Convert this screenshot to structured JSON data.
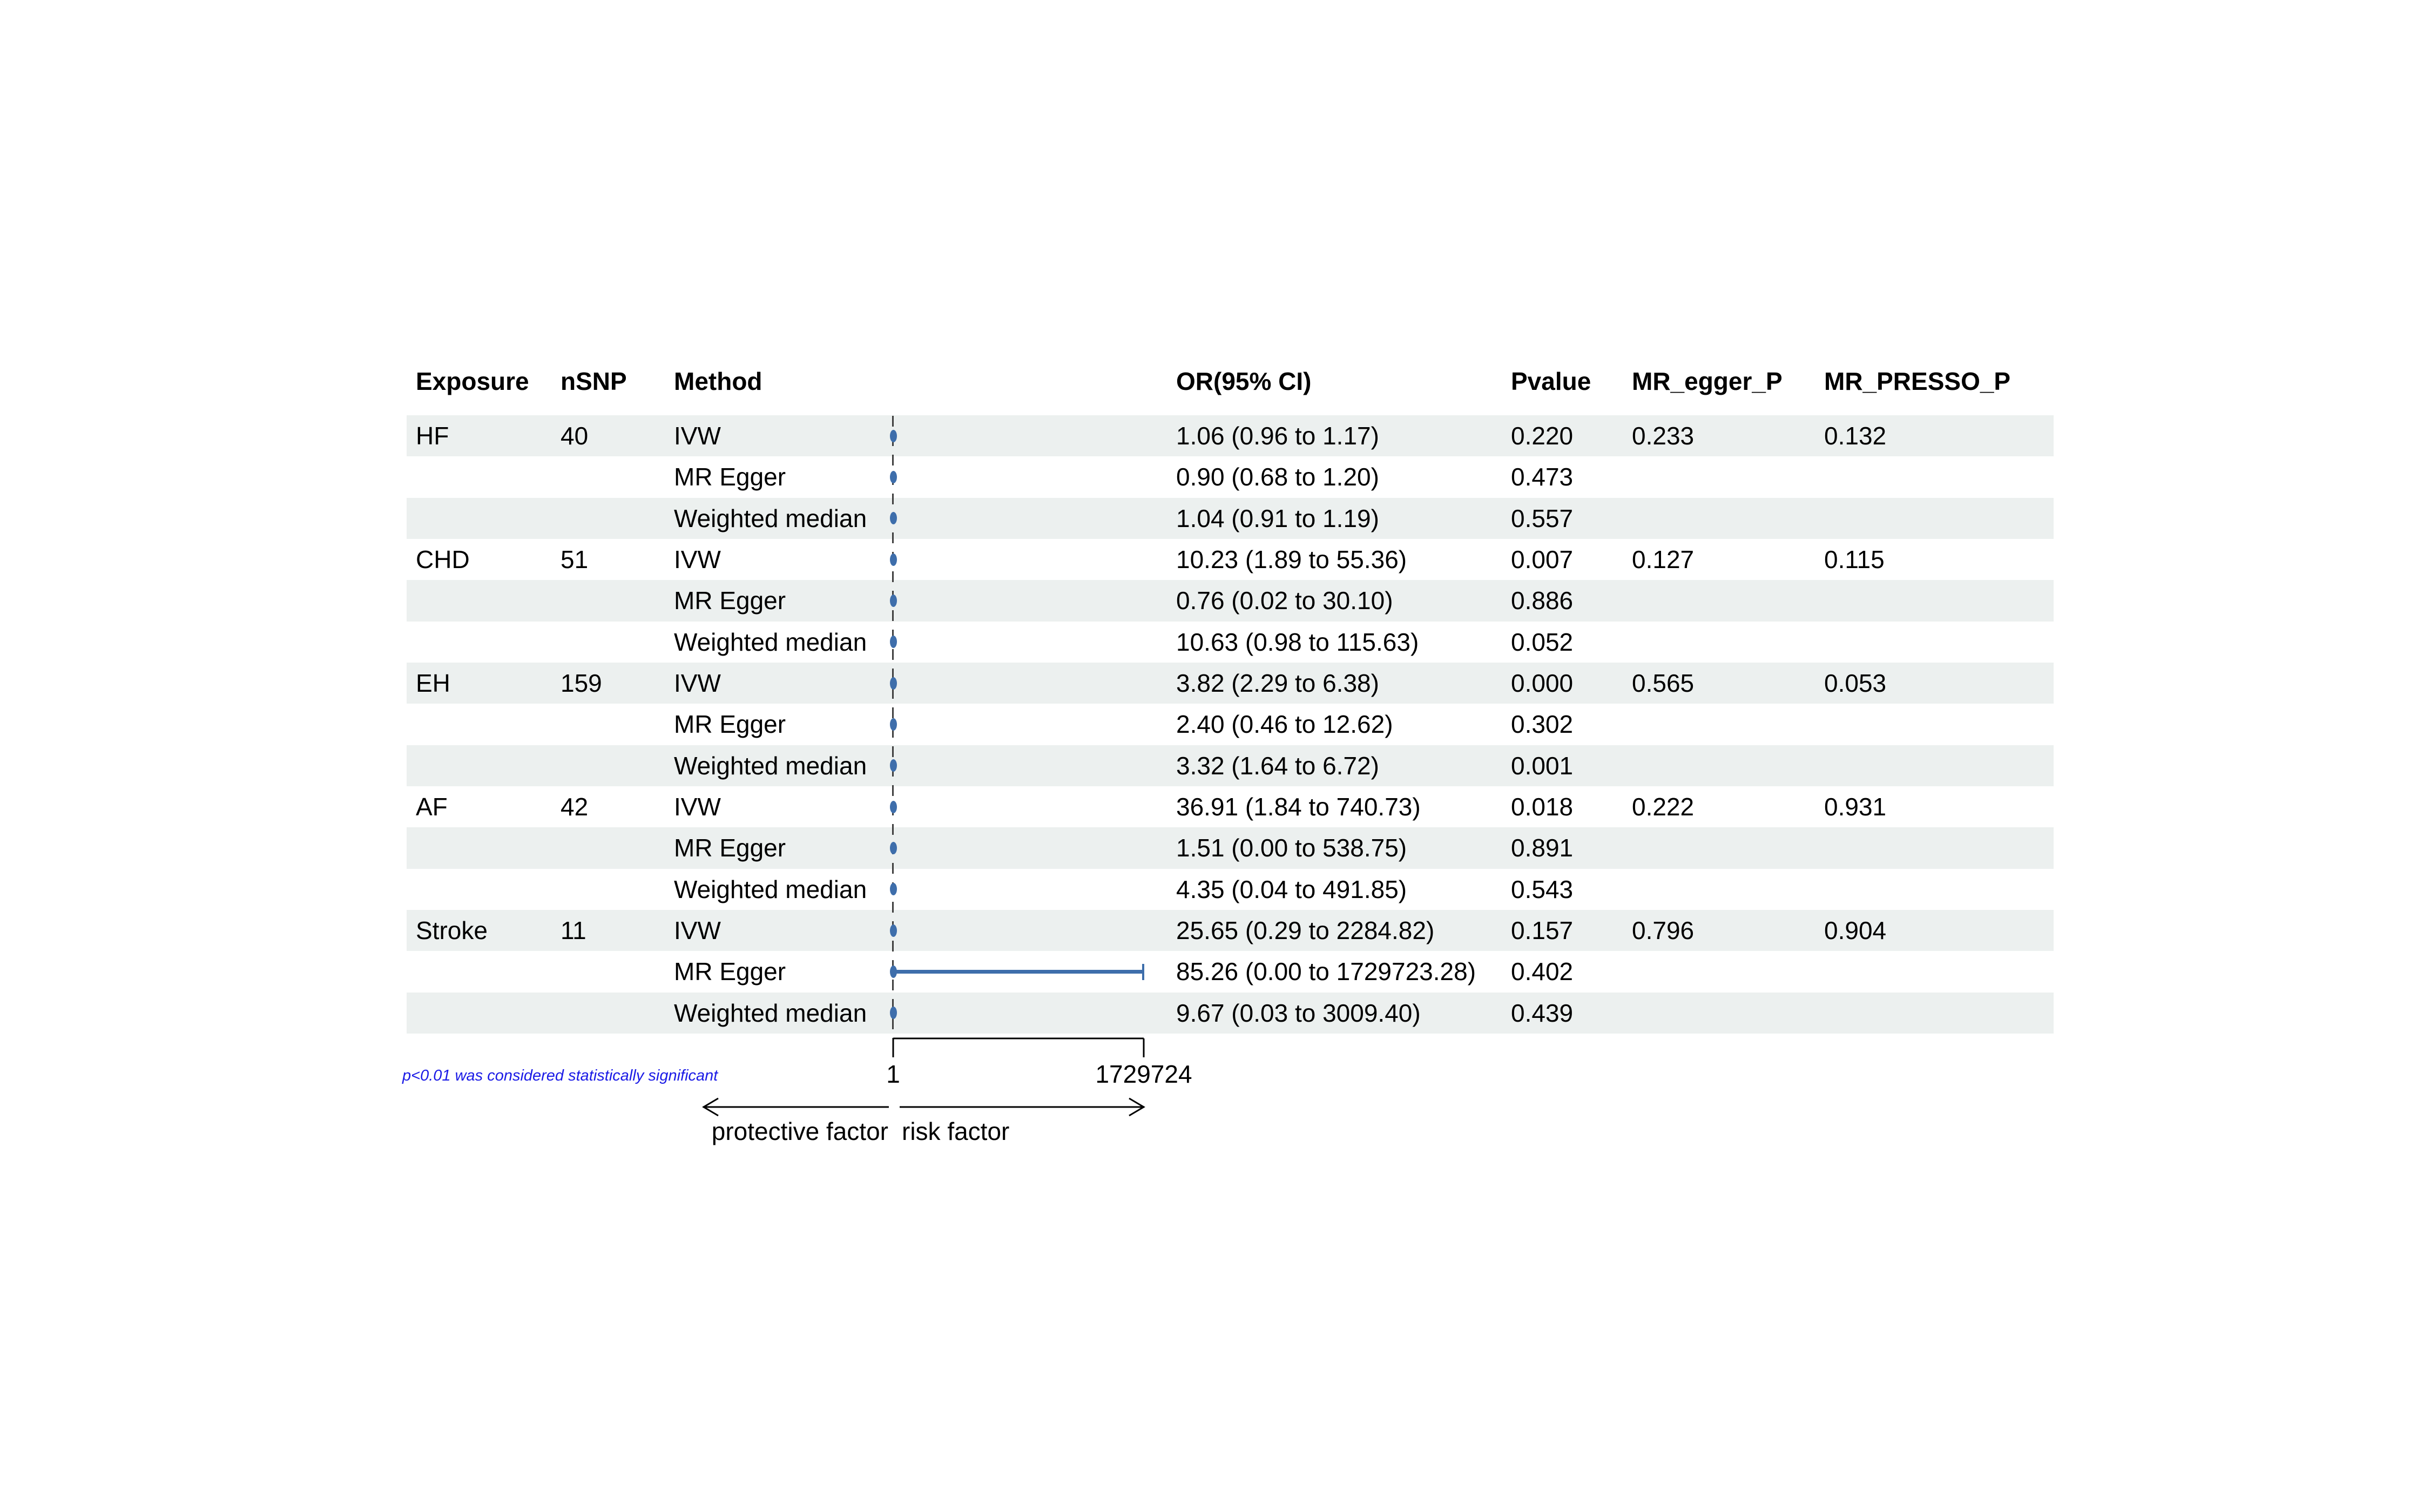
{
  "figure": {
    "columns": [
      "Exposure",
      "nSNP",
      "Method",
      "OR(95% CI)",
      "Pvalue",
      "MR_egger_P",
      "MR_PRESSO_P"
    ],
    "axis": {
      "tick_left": "1",
      "tick_right": "1729724",
      "left_label": "protective factor",
      "right_label": "risk factor"
    },
    "footnote": "p<0.01 was considered statistically significant",
    "colors": {
      "stripe": "#ecf0ef",
      "marker": "#3e6eab",
      "footnote_blue": "#1a1ae6",
      "text": "#000000"
    }
  },
  "chart_data": {
    "type": "forest",
    "x_axis": {
      "scale": "linear",
      "min": 1,
      "max": 1729724,
      "ticks": [
        1,
        1729724
      ],
      "reference_line": 1
    },
    "direction_labels": {
      "left": "protective factor",
      "right": "risk factor"
    },
    "columns": [
      "Exposure",
      "nSNP",
      "Method",
      "OR(95% CI)",
      "Pvalue",
      "MR_egger_P",
      "MR_PRESSO_P"
    ],
    "rows": [
      {
        "exposure": "HF",
        "nsnp": "40",
        "method": "IVW",
        "or_ci": "1.06 (0.96 to 1.17)",
        "pvalue": "0.220",
        "mr_egger_p": "0.233",
        "mr_presso_p": "0.132",
        "or": 1.06,
        "ci_low": 0.96,
        "ci_high": 1.17
      },
      {
        "exposure": "",
        "nsnp": "",
        "method": "MR Egger",
        "or_ci": "0.90 (0.68 to 1.20)",
        "pvalue": "0.473",
        "mr_egger_p": "",
        "mr_presso_p": "",
        "or": 0.9,
        "ci_low": 0.68,
        "ci_high": 1.2
      },
      {
        "exposure": "",
        "nsnp": "",
        "method": "Weighted median",
        "or_ci": "1.04 (0.91 to 1.19)",
        "pvalue": "0.557",
        "mr_egger_p": "",
        "mr_presso_p": "",
        "or": 1.04,
        "ci_low": 0.91,
        "ci_high": 1.19
      },
      {
        "exposure": "CHD",
        "nsnp": "51",
        "method": "IVW",
        "or_ci": "10.23 (1.89 to 55.36)",
        "pvalue": "0.007",
        "mr_egger_p": "0.127",
        "mr_presso_p": "0.115",
        "or": 10.23,
        "ci_low": 1.89,
        "ci_high": 55.36
      },
      {
        "exposure": "",
        "nsnp": "",
        "method": "MR Egger",
        "or_ci": "0.76 (0.02 to 30.10)",
        "pvalue": "0.886",
        "mr_egger_p": "",
        "mr_presso_p": "",
        "or": 0.76,
        "ci_low": 0.02,
        "ci_high": 30.1
      },
      {
        "exposure": "",
        "nsnp": "",
        "method": "Weighted median",
        "or_ci": "10.63 (0.98 to 115.63)",
        "pvalue": "0.052",
        "mr_egger_p": "",
        "mr_presso_p": "",
        "or": 10.63,
        "ci_low": 0.98,
        "ci_high": 115.63
      },
      {
        "exposure": "EH",
        "nsnp": "159",
        "method": "IVW",
        "or_ci": "3.82 (2.29 to 6.38)",
        "pvalue": "0.000",
        "mr_egger_p": "0.565",
        "mr_presso_p": "0.053",
        "or": 3.82,
        "ci_low": 2.29,
        "ci_high": 6.38
      },
      {
        "exposure": "",
        "nsnp": "",
        "method": "MR Egger",
        "or_ci": "2.40 (0.46 to 12.62)",
        "pvalue": "0.302",
        "mr_egger_p": "",
        "mr_presso_p": "",
        "or": 2.4,
        "ci_low": 0.46,
        "ci_high": 12.62
      },
      {
        "exposure": "",
        "nsnp": "",
        "method": "Weighted median",
        "or_ci": "3.32 (1.64 to 6.72)",
        "pvalue": "0.001",
        "mr_egger_p": "",
        "mr_presso_p": "",
        "or": 3.32,
        "ci_low": 1.64,
        "ci_high": 6.72
      },
      {
        "exposure": "AF",
        "nsnp": "42",
        "method": "IVW",
        "or_ci": "36.91 (1.84 to 740.73)",
        "pvalue": "0.018",
        "mr_egger_p": "0.222",
        "mr_presso_p": "0.931",
        "or": 36.91,
        "ci_low": 1.84,
        "ci_high": 740.73
      },
      {
        "exposure": "",
        "nsnp": "",
        "method": "MR Egger",
        "or_ci": "1.51 (0.00 to 538.75)",
        "pvalue": "0.891",
        "mr_egger_p": "",
        "mr_presso_p": "",
        "or": 1.51,
        "ci_low": 0.0,
        "ci_high": 538.75
      },
      {
        "exposure": "",
        "nsnp": "",
        "method": "Weighted median",
        "or_ci": "4.35 (0.04 to 491.85)",
        "pvalue": "0.543",
        "mr_egger_p": "",
        "mr_presso_p": "",
        "or": 4.35,
        "ci_low": 0.04,
        "ci_high": 491.85
      },
      {
        "exposure": "Stroke",
        "nsnp": "11",
        "method": "IVW",
        "or_ci": "25.65 (0.29 to 2284.82)",
        "pvalue": "0.157",
        "mr_egger_p": "0.796",
        "mr_presso_p": "0.904",
        "or": 25.65,
        "ci_low": 0.29,
        "ci_high": 2284.82
      },
      {
        "exposure": "",
        "nsnp": "",
        "method": "MR Egger",
        "or_ci": "85.26 (0.00 to 1729723.28)",
        "pvalue": "0.402",
        "mr_egger_p": "",
        "mr_presso_p": "",
        "or": 85.26,
        "ci_low": 0.0,
        "ci_high": 1729723.28
      },
      {
        "exposure": "",
        "nsnp": "",
        "method": "Weighted median",
        "or_ci": "9.67 (0.03 to 3009.40)",
        "pvalue": "0.439",
        "mr_egger_p": "",
        "mr_presso_p": "",
        "or": 9.67,
        "ci_low": 0.03,
        "ci_high": 3009.4
      }
    ]
  }
}
